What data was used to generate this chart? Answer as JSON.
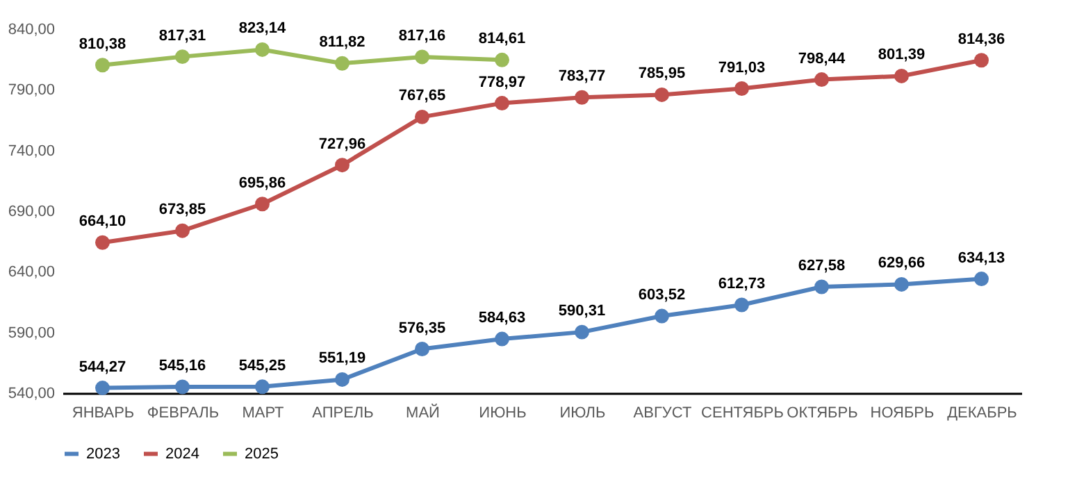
{
  "chart_data": {
    "type": "line",
    "categories": [
      "ЯНВАРЬ",
      "ФЕВРАЛЬ",
      "МАРТ",
      "АПРЕЛЬ",
      "МАЙ",
      "ИЮНЬ",
      "ИЮЛЬ",
      "АВГУСТ",
      "СЕНТЯБРЬ",
      "ОКТЯБРЬ",
      "НОЯБРЬ",
      "ДЕКАБРЬ"
    ],
    "series": [
      {
        "name": "2023",
        "color": "#4f81bd",
        "values": [
          544.27,
          545.16,
          545.25,
          551.19,
          576.35,
          584.63,
          590.31,
          603.52,
          612.73,
          627.58,
          629.66,
          634.13
        ],
        "value_labels": [
          "544,27",
          "545,16",
          "545,25",
          "551,19",
          "576,35",
          "584,63",
          "590,31",
          "603,52",
          "612,73",
          "627,58",
          "629,66",
          "634,13"
        ]
      },
      {
        "name": "2024",
        "color": "#c0504d",
        "values": [
          664.1,
          673.85,
          695.86,
          727.96,
          767.65,
          778.97,
          783.77,
          785.95,
          791.03,
          798.44,
          801.39,
          814.36
        ],
        "value_labels": [
          "664,10",
          "673,85",
          "695,86",
          "727,96",
          "767,65",
          "778,97",
          "783,77",
          "785,95",
          "791,03",
          "798,44",
          "801,39",
          "814,36"
        ]
      },
      {
        "name": "2025",
        "color": "#9bbb59",
        "values": [
          810.38,
          817.31,
          823.14,
          811.82,
          817.16,
          814.61,
          null,
          null,
          null,
          null,
          null,
          null
        ],
        "value_labels": [
          "810,38",
          "817,31",
          "823,14",
          "811,82",
          "817,16",
          "814,61",
          null,
          null,
          null,
          null,
          null,
          null
        ]
      }
    ],
    "ylim": [
      540,
      840
    ],
    "yticks": [
      {
        "value": 540,
        "label": "540,00"
      },
      {
        "value": 590,
        "label": "590,00"
      },
      {
        "value": 640,
        "label": "640,00"
      },
      {
        "value": 690,
        "label": "690,00"
      },
      {
        "value": 740,
        "label": "740,00"
      },
      {
        "value": 790,
        "label": "790,00"
      },
      {
        "value": 840,
        "label": "840,00"
      }
    ],
    "legend": "bottom",
    "marker": "circle",
    "line_style": "solid"
  }
}
